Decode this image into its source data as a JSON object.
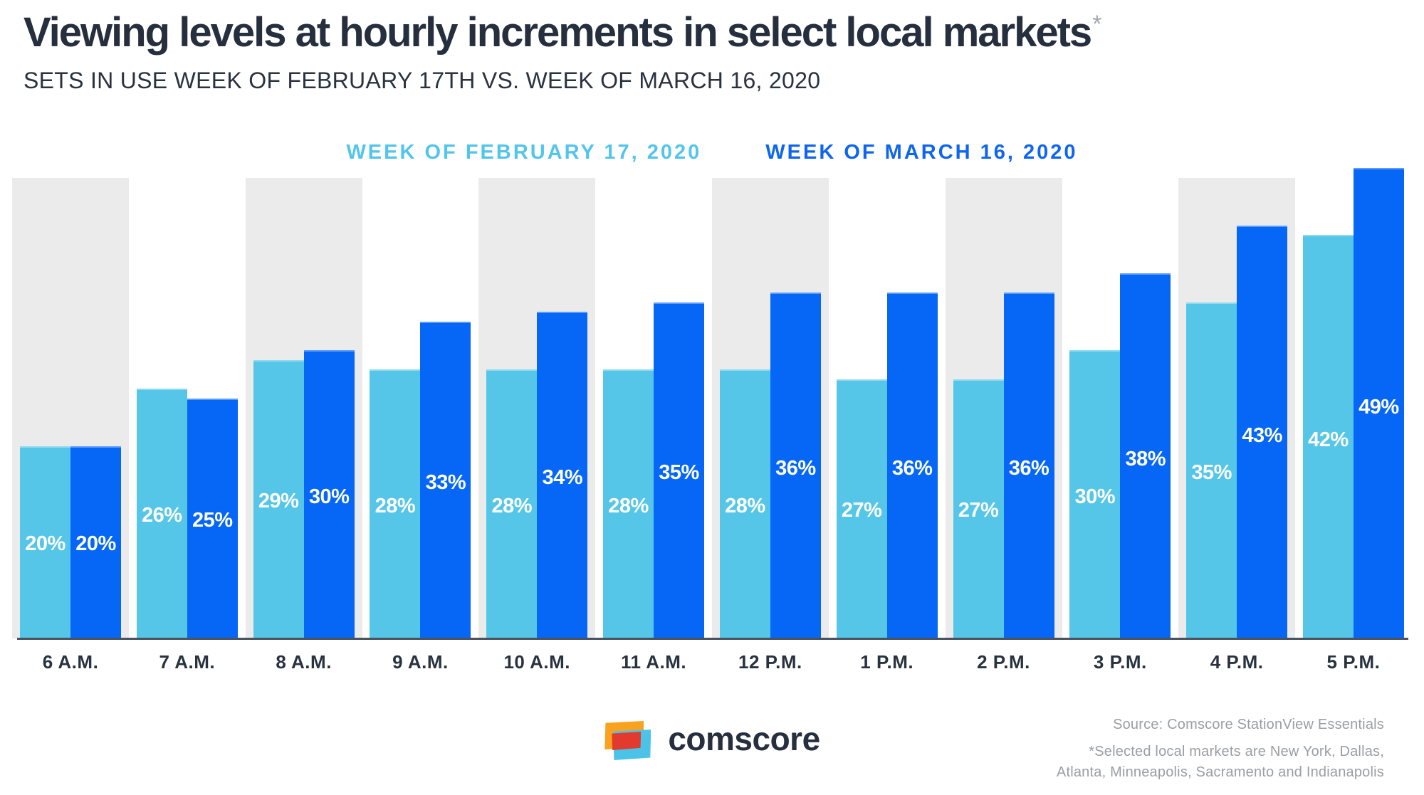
{
  "title": "Viewing levels at hourly increments in select local markets",
  "title_asterisk": "*",
  "subtitle": "SETS IN USE WEEK OF FEBRUARY 17TH VS. WEEK OF MARCH 16, 2020",
  "legend": [
    {
      "label": "WEEK OF FEBRUARY 17, 2020",
      "color": "#53C5EC"
    },
    {
      "label": "WEEK OF MARCH 16, 2020",
      "color": "#0E66EF"
    }
  ],
  "chart_data": {
    "type": "bar",
    "title": "Viewing levels at hourly increments in select local markets",
    "subtitle": "Sets in use week of February 17th vs. week of March 16, 2020",
    "categories": [
      "6 A.M.",
      "7 A.M.",
      "8 A.M.",
      "9 A.M.",
      "10 A.M.",
      "11 A.M.",
      "12 P.M.",
      "1 P.M.",
      "2 P.M.",
      "3 P.M.",
      "4 P.M.",
      "5 P.M."
    ],
    "series": [
      {
        "name": "Week of February 17, 2020",
        "color": "#55C6E8",
        "values": [
          20,
          26,
          29,
          28,
          28,
          28,
          28,
          27,
          27,
          30,
          35,
          42
        ]
      },
      {
        "name": "Week of March 16, 2020",
        "color": "#0667F6",
        "values": [
          20,
          25,
          30,
          33,
          34,
          35,
          36,
          36,
          36,
          38,
          43,
          49
        ]
      }
    ],
    "value_suffix": "%",
    "xlabel": "",
    "ylabel": "",
    "ylim": [
      0,
      49
    ],
    "grid": false,
    "legend_position": "top",
    "shaded_category_indexes": [
      0,
      2,
      4,
      6,
      8,
      10
    ],
    "shade_color": "#EBEBEB",
    "data_labels": "inside-white"
  },
  "footer": {
    "logo_text": "comscore",
    "logo_colors": {
      "orange": "#F9A21F",
      "red": "#E23B2E",
      "blue": "#4BC2E8"
    },
    "source": "Source: Comscore StationView Essentials",
    "footnote_line1": "*Selected local markets are New York, Dallas,",
    "footnote_line2": "Atlanta, Minneapolis, Sacramento and Indianapolis"
  }
}
